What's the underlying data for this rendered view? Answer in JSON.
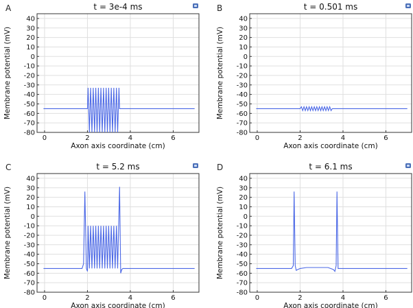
{
  "figure": {
    "icon_name": "comsol-logo-icon",
    "trace_color": "#4a67e6",
    "grid_color": "#dfdfdf"
  },
  "chart_data": [
    {
      "type": "line",
      "panel": "A",
      "title": "t = 3e-4 ms",
      "xlabel": "Axon axis coordinate (cm)",
      "ylabel": "Membrane potential (mV)",
      "xlim": [
        -0.35,
        7.2
      ],
      "ylim": [
        -80,
        45
      ],
      "xticks": [
        0,
        2,
        4,
        6
      ],
      "yticks": [
        -80,
        -70,
        -60,
        -50,
        -40,
        -30,
        -20,
        -10,
        0,
        10,
        20,
        30,
        40
      ],
      "series": [
        {
          "name": "Membrane potential",
          "x": [
            -0.05,
            2.0,
            2.03,
            2.09,
            2.15,
            2.21,
            2.27,
            2.33,
            2.39,
            2.45,
            2.51,
            2.57,
            2.63,
            2.69,
            2.75,
            2.81,
            2.87,
            2.93,
            2.99,
            3.05,
            3.11,
            3.17,
            3.23,
            3.29,
            3.35,
            3.41,
            3.47,
            3.5,
            7.0
          ],
          "y": [
            -55,
            -55,
            -33,
            -80,
            -33,
            -80,
            -33,
            -80,
            -33,
            -80,
            -33,
            -80,
            -33,
            -80,
            -33,
            -80,
            -33,
            -80,
            -33,
            -80,
            -33,
            -80,
            -33,
            -80,
            -33,
            -80,
            -33,
            -55,
            -55
          ]
        }
      ]
    },
    {
      "type": "line",
      "panel": "B",
      "title": "t = 0.501 ms",
      "xlabel": "Axon axis coordinate (cm)",
      "ylabel": "Membrane potential (mV)",
      "xlim": [
        -0.35,
        7.2
      ],
      "ylim": [
        -80,
        45
      ],
      "xticks": [
        0,
        2,
        4,
        6
      ],
      "yticks": [
        -80,
        -70,
        -60,
        -50,
        -40,
        -30,
        -20,
        -10,
        0,
        10,
        20,
        30,
        40
      ],
      "series": [
        {
          "name": "Membrane potential",
          "x": [
            -0.05,
            2.0,
            2.06,
            2.12,
            2.18,
            2.24,
            2.3,
            2.36,
            2.42,
            2.48,
            2.54,
            2.6,
            2.66,
            2.72,
            2.78,
            2.84,
            2.9,
            2.96,
            3.02,
            3.08,
            3.14,
            3.2,
            3.26,
            3.32,
            3.38,
            3.44,
            3.5,
            7.0
          ],
          "y": [
            -55,
            -55,
            -53,
            -57,
            -53,
            -57,
            -53,
            -57,
            -53,
            -57,
            -53,
            -57,
            -53,
            -57,
            -53,
            -57,
            -53,
            -57,
            -53,
            -57,
            -53,
            -57,
            -53,
            -57,
            -53,
            -57,
            -55,
            -55
          ]
        }
      ]
    },
    {
      "type": "line",
      "panel": "C",
      "title": "t = 5.2 ms",
      "xlabel": "Axon axis coordinate (cm)",
      "ylabel": "Membrane potential (mV)",
      "xlim": [
        -0.35,
        7.2
      ],
      "ylim": [
        -80,
        45
      ],
      "xticks": [
        0,
        2,
        4,
        6
      ],
      "yticks": [
        -80,
        -70,
        -60,
        -50,
        -40,
        -30,
        -20,
        -10,
        0,
        10,
        20,
        30,
        40
      ],
      "series": [
        {
          "name": "Membrane potential",
          "x": [
            -0.05,
            1.75,
            1.82,
            1.88,
            1.95,
            2.0,
            2.03,
            2.09,
            2.15,
            2.21,
            2.27,
            2.33,
            2.39,
            2.45,
            2.51,
            2.57,
            2.63,
            2.69,
            2.75,
            2.81,
            2.87,
            2.93,
            2.99,
            3.05,
            3.11,
            3.17,
            3.23,
            3.29,
            3.35,
            3.41,
            3.5,
            3.55,
            3.6,
            3.65,
            3.7,
            7.0
          ],
          "y": [
            -55,
            -55,
            -50,
            26,
            -55,
            -58,
            -10,
            -55,
            -10,
            -55,
            -10,
            -55,
            -10,
            -55,
            -10,
            -55,
            -10,
            -55,
            -10,
            -55,
            -10,
            -55,
            -10,
            -55,
            -10,
            -55,
            -10,
            -55,
            -10,
            -55,
            31,
            -60,
            -56,
            -55,
            -55,
            -55
          ]
        }
      ]
    },
    {
      "type": "line",
      "panel": "D",
      "title": "t = 6.1 ms",
      "xlabel": "Axon axis coordinate (cm)",
      "ylabel": "Membrane potential (mV)",
      "xlim": [
        -0.35,
        7.2
      ],
      "ylim": [
        -80,
        45
      ],
      "xticks": [
        0,
        2,
        4,
        6
      ],
      "yticks": [
        -80,
        -70,
        -60,
        -50,
        -40,
        -30,
        -20,
        -10,
        0,
        10,
        20,
        30,
        40
      ],
      "series": [
        {
          "name": "Membrane potential",
          "x": [
            -0.05,
            1.6,
            1.68,
            1.72,
            1.77,
            1.82,
            1.9,
            2.0,
            2.3,
            3.3,
            3.55,
            3.62,
            3.68,
            3.72,
            3.77,
            3.85,
            7.0
          ],
          "y": [
            -55,
            -55,
            -52,
            26,
            -52,
            -57,
            -56,
            -55,
            -54,
            -54,
            -56,
            -58,
            -52,
            26,
            -55,
            -55,
            -55
          ]
        }
      ]
    }
  ]
}
